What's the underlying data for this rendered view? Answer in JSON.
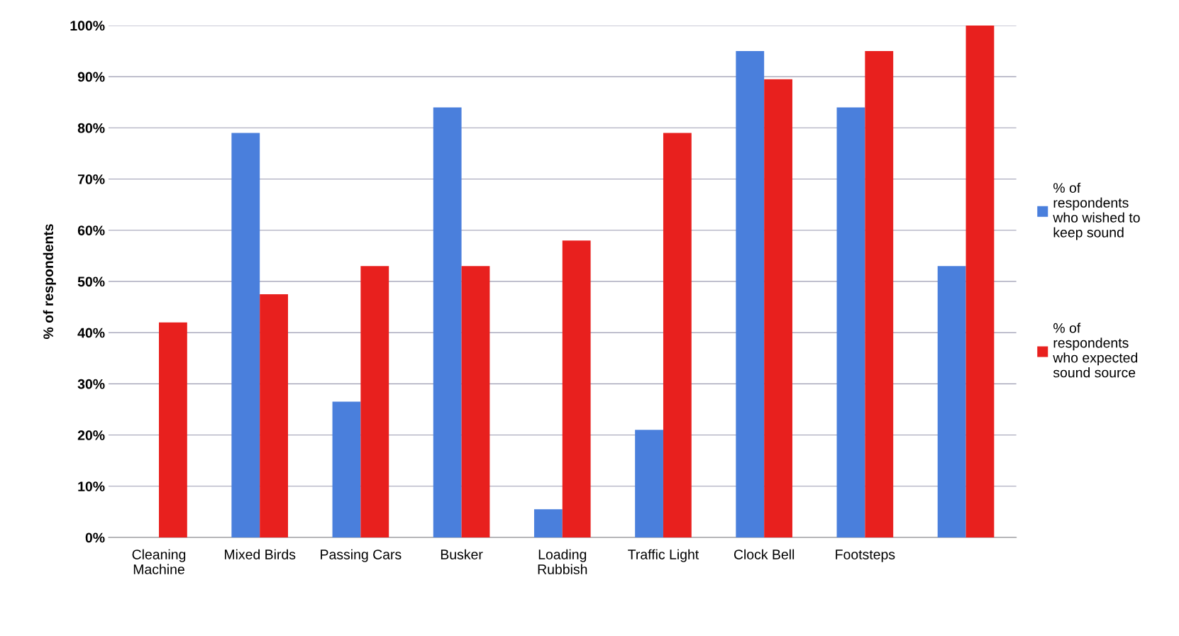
{
  "chart_data": {
    "type": "bar",
    "ylabel": "% of respondents",
    "categories": [
      "Cleaning\nMachine",
      "Mixed Birds",
      "Passing Cars",
      "Busker",
      "Loading\nRubbish",
      "Traffic Light",
      "Clock Bell",
      "Footsteps",
      null
    ],
    "series": [
      {
        "name": "% of\nrespondents\nwho wished to\nkeep sound",
        "color": "#4a7fdc",
        "values": [
          0,
          79,
          26.5,
          84,
          5.5,
          21,
          95,
          84,
          53
        ]
      },
      {
        "name": "% of\nrespondents\nwho expected\nsound source",
        "color": "#e8201e",
        "values": [
          42,
          47.5,
          53,
          53,
          58,
          79,
          89.5,
          95,
          100
        ]
      }
    ],
    "ylim": [
      0,
      100
    ],
    "yticks": [
      {
        "value": 0,
        "label": "0%"
      },
      {
        "value": 10,
        "label": "10%"
      },
      {
        "value": 20,
        "label": "20%"
      },
      {
        "value": 30,
        "label": "30%"
      },
      {
        "value": 40,
        "label": "40%"
      },
      {
        "value": 50,
        "label": "50%"
      },
      {
        "value": 60,
        "label": "60%"
      },
      {
        "value": 70,
        "label": "70%"
      },
      {
        "value": 80,
        "label": "80%"
      },
      {
        "value": 90,
        "label": "90%"
      },
      {
        "value": 100,
        "label": "100%"
      }
    ],
    "grid": "y",
    "legend": "right"
  }
}
